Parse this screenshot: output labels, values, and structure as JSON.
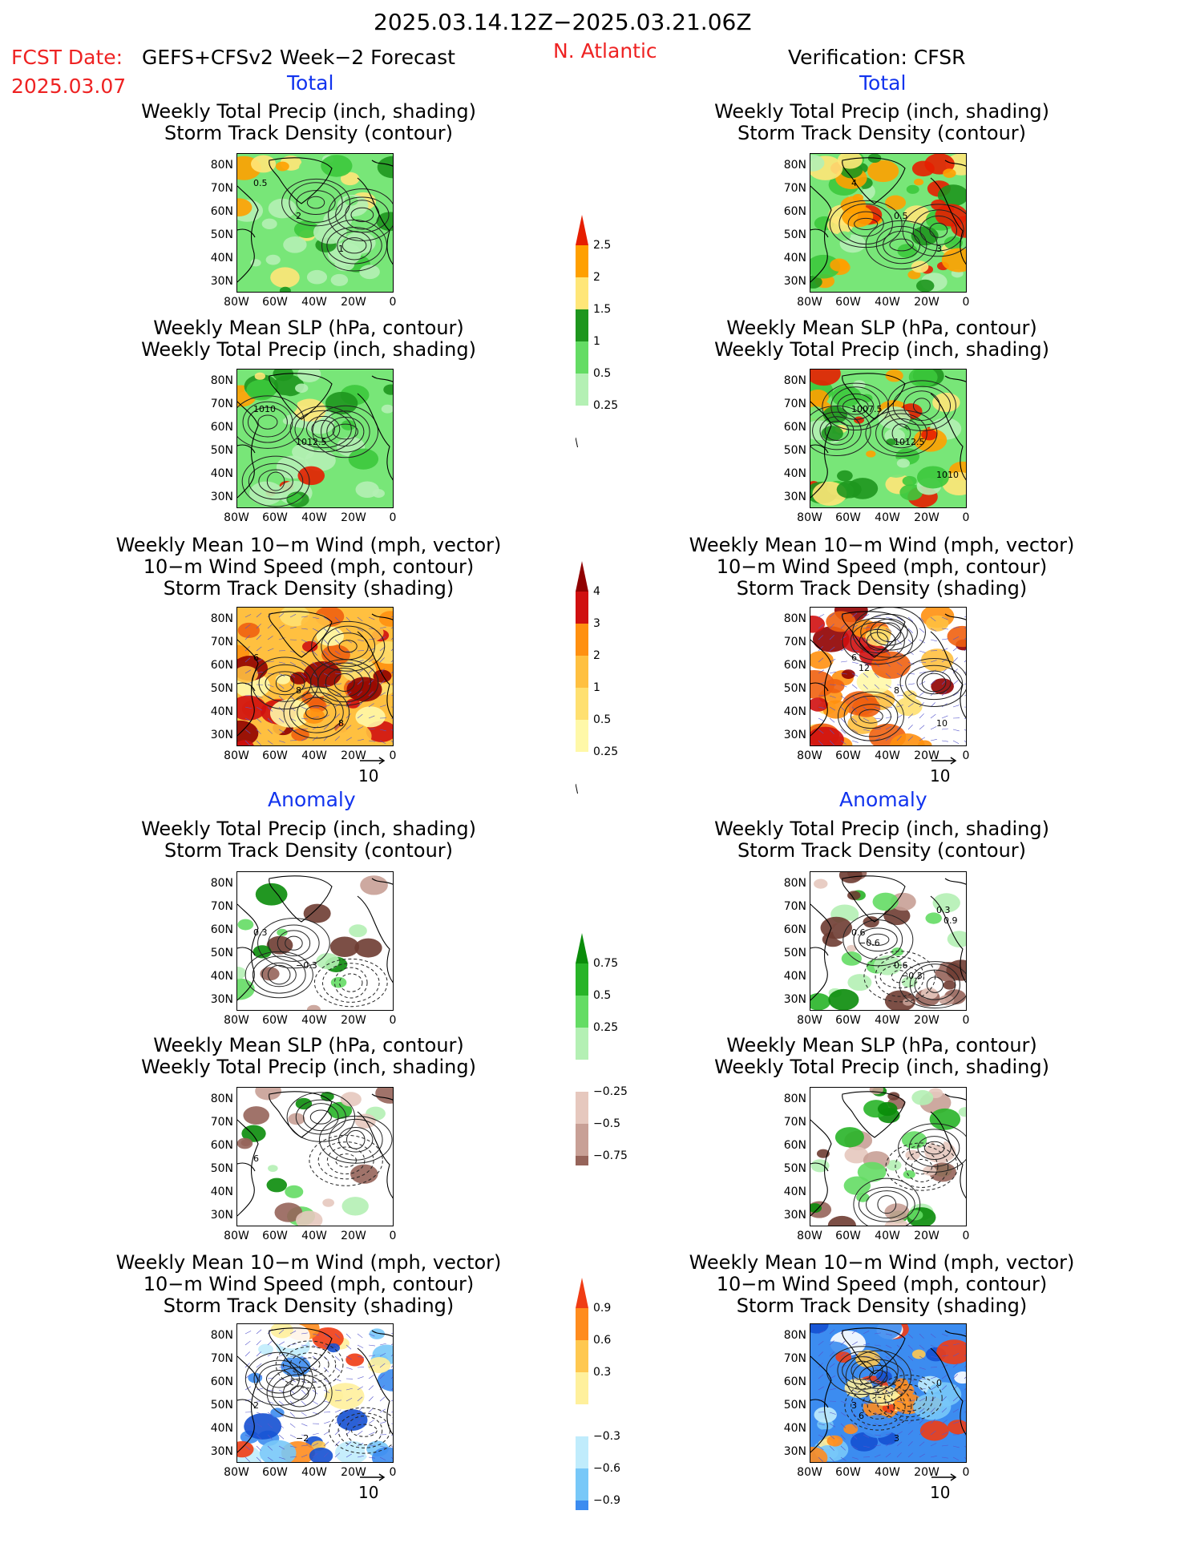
{
  "header": {
    "date_range": "2025.03.14.12Z−2025.03.21.06Z",
    "fcst_label": "FCST Date:",
    "fcst_date": "2025.03.07",
    "model": "GEFS+CFSv2 Week−2 Forecast",
    "region": "N. Atlantic",
    "verification": "Verification: CFSR"
  },
  "sections": {
    "total": "Total",
    "anomaly": "Anomaly"
  },
  "panel_titles": {
    "precip_storm": [
      "Weekly Total Precip (inch, shading)",
      "Storm Track Density (contour)"
    ],
    "slp_precip": [
      "Weekly Mean SLP (hPa, contour)",
      "Weekly Total Precip (inch, shading)"
    ],
    "wind_storm": [
      "Weekly Mean 10−m Wind (mph, vector)",
      "10−m Wind Speed (mph, contour)",
      "Storm Track Density (shading)"
    ]
  },
  "axes": {
    "lat_labels": [
      "80N",
      "70N",
      "60N",
      "50N",
      "40N",
      "30N"
    ],
    "lon_labels": [
      "80W",
      "60W",
      "40W",
      "20W",
      "0"
    ]
  },
  "colorbars": {
    "total_precip": [
      "2.5",
      "2",
      "1.5",
      "1",
      "0.5",
      "0.25"
    ],
    "total_storm": [
      "4",
      "3",
      "2",
      "1",
      "0.5",
      "0.25"
    ],
    "anom_precip": [
      "0.75",
      "0.5",
      "0.25",
      "−0.25",
      "−0.5",
      "−0.75"
    ],
    "anom_storm": [
      "0.9",
      "0.6",
      "0.3",
      "−0.3",
      "−0.6",
      "−0.9"
    ]
  },
  "vector_ref": "10",
  "contour_labels": {
    "f_total_precip": [
      "0.5",
      "2",
      "1"
    ],
    "v_total_precip": [
      "4",
      "0.5",
      "3"
    ],
    "f_total_slp": [
      "1010",
      "1012.5"
    ],
    "v_total_slp": [
      "1007.5",
      "1012.5",
      "1010"
    ],
    "f_total_wind": [
      "6",
      "8",
      "8"
    ],
    "v_total_wind": [
      "6",
      "8",
      "10",
      "12"
    ],
    "f_anom_precip": [
      "0.3",
      "−0.3"
    ],
    "v_anom_precip": [
      "0.6",
      "0.6",
      "0.3",
      "−0.6",
      "−0.3",
      "0.9"
    ],
    "f_anom_slp": [
      "6"
    ],
    "f_anom_wind": [
      "2",
      "−2"
    ],
    "v_anom_wind": [
      "3",
      "3",
      "0",
      "6"
    ]
  },
  "colors": {
    "precip": [
      "#b4f0b4",
      "#78e678",
      "#3cc83c",
      "#1e961e",
      "#ffe678",
      "#ffa000",
      "#e61e00"
    ],
    "storm": [
      "#fff8a8",
      "#ffe070",
      "#ffc040",
      "#ff9010",
      "#f06010",
      "#d01010",
      "#900000"
    ],
    "anom_precip": [
      "#6e3c32",
      "#96645a",
      "#c8a096",
      "#e6c8be",
      "#ffffff",
      "#b4f0b4",
      "#64dc64",
      "#28b428",
      "#0a8c0a"
    ],
    "anom_storm": [
      "#1450d2",
      "#3c8cf0",
      "#78c8f8",
      "#c0ecfc",
      "#ffffff",
      "#fff09c",
      "#ffc850",
      "#ff8c1e",
      "#f03c14"
    ]
  }
}
